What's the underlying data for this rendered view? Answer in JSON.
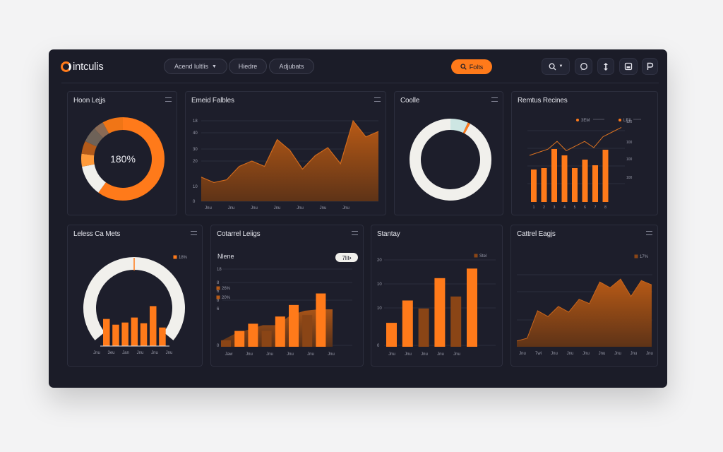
{
  "app": {
    "brand": "intculis"
  },
  "topbar": {
    "filter_select": "Acend lultlis",
    "nav_1": "Hiedre",
    "nav_2": "Adjubats",
    "filter_button": "Folts",
    "icon_button_1": "chevron-down-icon"
  },
  "colors": {
    "accent": "#ff7a1a",
    "accent_dark": "#8a4516",
    "panel": "#1d1e2b",
    "background": "#1b1c28",
    "donut_light": "#f1f0ec",
    "donut_teal": "#cde6e3"
  },
  "cards": {
    "c1": {
      "title": "Hoon Lejjs",
      "center": "180%"
    },
    "c2": {
      "title": "Emeid Falbles"
    },
    "c3": {
      "title": "Coolle"
    },
    "c4": {
      "title": "Remtus Recines"
    },
    "c5": {
      "title": "Leless Ca Mets"
    },
    "c6": {
      "title": "Cotarrel Leiigs",
      "subtitle": "Nlene",
      "badge": "7lit•"
    },
    "c7": {
      "title": "Stantay"
    },
    "c8": {
      "title": "Cattrel Eagjs"
    }
  },
  "chart_data": [
    {
      "type": "pie",
      "title": "Hoon Lejjs",
      "center_label": "180%",
      "slices": [
        {
          "value": 60,
          "color": "#ff7a1a"
        },
        {
          "value": 12,
          "color": "#f1f0ec"
        },
        {
          "value": 5,
          "color": "#ff9a3a"
        },
        {
          "value": 5,
          "color": "#b35a1a"
        },
        {
          "value": 6,
          "color": "#6e6258"
        },
        {
          "value": 4,
          "color": "#8a6a55"
        },
        {
          "value": 8,
          "color": "#f07516"
        }
      ]
    },
    {
      "type": "area",
      "title": "Emeid Falbles",
      "ylabels": [
        "18",
        "40",
        "30",
        "20",
        "10",
        "0"
      ],
      "xlabels": [
        "Jnu",
        "Jnu",
        "Jnu",
        "Jnu",
        "Jnu",
        "Jnu",
        "Jnu"
      ],
      "ylim": [
        0,
        60
      ],
      "values": [
        18,
        14,
        16,
        26,
        30,
        26,
        46,
        38,
        24,
        34,
        40,
        28,
        60,
        48,
        52
      ]
    },
    {
      "type": "pie",
      "title": "Coolle",
      "slices": [
        {
          "value": 7,
          "color": "#cde6e3"
        },
        {
          "value": 1,
          "color": "#ff7a1a"
        },
        {
          "value": 92,
          "color": "#f1f0ec"
        }
      ]
    },
    {
      "type": "bar",
      "title": "Remtus Recines",
      "legend": [
        "3EM",
        "LEII",
        "LEIIS"
      ],
      "ylabels": [
        "120",
        "100",
        "100",
        "100"
      ],
      "categories": [
        "1",
        "2",
        "3",
        "4",
        "5",
        "6",
        "7",
        "8"
      ],
      "values": [
        46,
        48,
        75,
        66,
        48,
        60,
        52,
        74
      ],
      "line": [
        60,
        64,
        68,
        78,
        66,
        72,
        78,
        70,
        84,
        90,
        96
      ],
      "ylim": [
        0,
        100
      ]
    },
    {
      "type": "bar",
      "title": "Leless Ca Mets",
      "legend": [
        "18%"
      ],
      "xlabels": [
        "Jnu",
        "3eu",
        "Jan",
        "Jnu",
        "Jnu",
        "Jnu"
      ],
      "values": [
        38,
        30,
        33,
        40,
        32,
        56,
        26
      ],
      "ylim": [
        0,
        100
      ]
    },
    {
      "type": "bar",
      "title": "Cotarrel Leiigs",
      "subtitle": "Nlene",
      "legend": [
        "26%",
        "20%"
      ],
      "ylabels": [
        "18",
        "8",
        "6",
        "8",
        "6",
        "0"
      ],
      "xlabels": [
        "Jaw",
        "Jnu",
        "Jnu",
        "Jnu",
        "Jnu",
        "Jnu"
      ],
      "values": [
        9,
        22,
        32,
        22,
        42,
        58,
        44,
        74
      ],
      "area": [
        8,
        18,
        24,
        30,
        30,
        44,
        50,
        52,
        52
      ],
      "ylim": [
        0,
        100
      ]
    },
    {
      "type": "bar",
      "title": "Stantay",
      "legend": [
        "Stel"
      ],
      "ylabels": [
        "20",
        "10",
        "10",
        "0"
      ],
      "xlabels": [
        "Jnu",
        "Jnu",
        "Jnu",
        "Jnu",
        "Jnu"
      ],
      "values": [
        30,
        58,
        48,
        86,
        63,
        98
      ],
      "ylim": [
        0,
        100
      ]
    },
    {
      "type": "area",
      "title": "Cattrel Eagjs",
      "legend": [
        "17%"
      ],
      "xlabels": [
        "Jnu",
        "7wi",
        "Jnu",
        "Jnu",
        "Jnu",
        "Jnu",
        "Jnu",
        "Jnu",
        "Jnu"
      ],
      "values": [
        8,
        12,
        50,
        42,
        56,
        48,
        66,
        60,
        90,
        82,
        94,
        70,
        92,
        86
      ],
      "ylim": [
        0,
        100
      ]
    }
  ]
}
